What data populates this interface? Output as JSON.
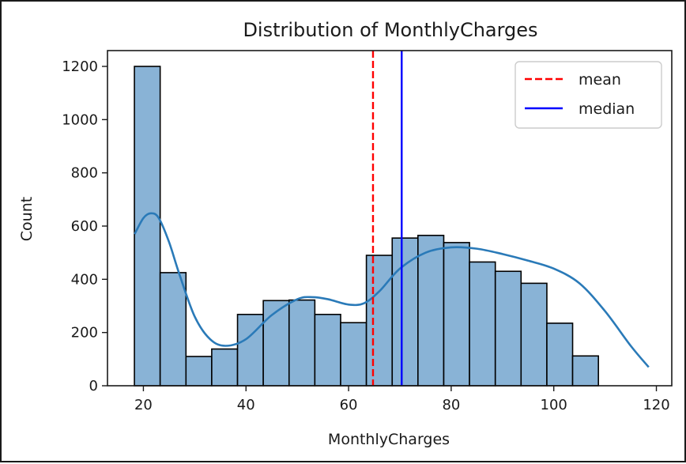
{
  "chart_data": {
    "type": "bar",
    "subtype": "histogram",
    "title": "Distribution of MonthlyCharges",
    "xlabel": "MonthlyCharges",
    "ylabel": "Count",
    "xlim": [
      13,
      123
    ],
    "ylim": [
      0,
      1200
    ],
    "xticks": [
      20,
      40,
      60,
      80,
      100,
      120
    ],
    "yticks": [
      0,
      200,
      400,
      600,
      800,
      1000,
      1200
    ],
    "bins": [
      {
        "start": 18.25,
        "end": 23.27,
        "count": 1200
      },
      {
        "start": 23.27,
        "end": 28.3,
        "count": 425
      },
      {
        "start": 28.3,
        "end": 33.32,
        "count": 110
      },
      {
        "start": 33.32,
        "end": 38.35,
        "count": 138
      },
      {
        "start": 38.35,
        "end": 43.37,
        "count": 268
      },
      {
        "start": 43.37,
        "end": 48.4,
        "count": 320
      },
      {
        "start": 48.4,
        "end": 53.42,
        "count": 322
      },
      {
        "start": 53.42,
        "end": 58.45,
        "count": 268
      },
      {
        "start": 58.45,
        "end": 63.47,
        "count": 237
      },
      {
        "start": 63.47,
        "end": 68.5,
        "count": 490
      },
      {
        "start": 68.5,
        "end": 73.52,
        "count": 555
      },
      {
        "start": 73.52,
        "end": 78.55,
        "count": 565
      },
      {
        "start": 78.55,
        "end": 83.57,
        "count": 538
      },
      {
        "start": 83.57,
        "end": 88.6,
        "count": 465
      },
      {
        "start": 88.6,
        "end": 93.62,
        "count": 430
      },
      {
        "start": 93.62,
        "end": 98.65,
        "count": 385
      },
      {
        "start": 98.65,
        "end": 103.67,
        "count": 235
      },
      {
        "start": 103.67,
        "end": 108.7,
        "count": 112
      }
    ],
    "kde": {
      "x": [
        18.3,
        20,
        21.5,
        23,
        25,
        27,
        30,
        33,
        36,
        40,
        45,
        50,
        53,
        56,
        60,
        63,
        66,
        70,
        75,
        80,
        85,
        90,
        95,
        100,
        105,
        110,
        115,
        118.5
      ],
      "y": [
        570,
        630,
        648,
        630,
        540,
        420,
        260,
        175,
        150,
        175,
        265,
        325,
        333,
        325,
        305,
        310,
        355,
        440,
        500,
        520,
        515,
        495,
        470,
        440,
        385,
        280,
        150,
        70
      ]
    },
    "reference_lines": [
      {
        "name": "mean",
        "value": 64.76,
        "color": "#ff0000",
        "style": "dashed"
      },
      {
        "name": "median",
        "value": 70.35,
        "color": "#0000ff",
        "style": "solid"
      }
    ],
    "colors": {
      "bar_fill": "#89b3d6",
      "bar_edge": "#000000",
      "kde": "#2a7ab8"
    },
    "legend": {
      "position": "top-right",
      "entries": [
        "mean",
        "median"
      ]
    }
  }
}
